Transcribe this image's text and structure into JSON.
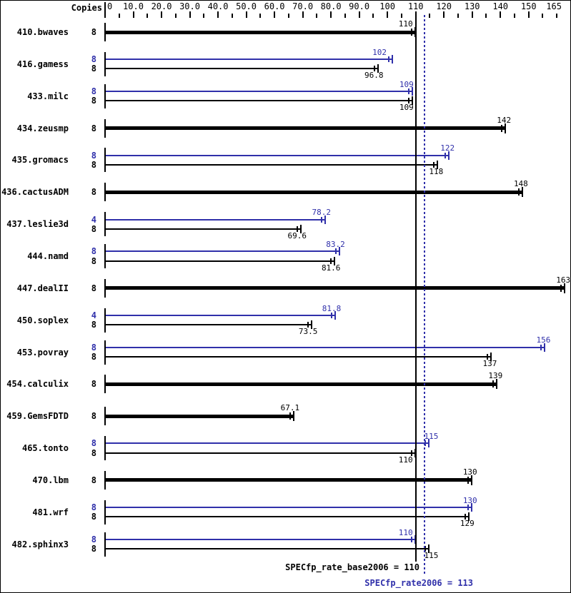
{
  "colors": {
    "base": "#000000",
    "peak": "#3030aa",
    "background": "#ffffff"
  },
  "chart_data": {
    "type": "bar",
    "orientation": "horizontal",
    "title": "",
    "copies_column_header": "Copies",
    "value_axis": {
      "position": "top",
      "min": 0,
      "max": 165,
      "tick_labels": [
        "0",
        "10.0",
        "20.0",
        "30.0",
        "40.0",
        "50.0",
        "60.0",
        "70.0",
        "80.0",
        "90.0",
        "100",
        "110",
        "120",
        "130",
        "140",
        "150",
        "165"
      ],
      "tick_values": [
        0,
        10,
        20,
        30,
        40,
        50,
        60,
        70,
        80,
        90,
        100,
        110,
        120,
        130,
        140,
        150,
        165
      ],
      "minor_tick_values": [
        5,
        15,
        25,
        35,
        45,
        55,
        65,
        75,
        85,
        95,
        105,
        115,
        125,
        135,
        145,
        155,
        160
      ]
    },
    "series_colors": {
      "base": "#000000",
      "peak": "#3030aa"
    },
    "benchmarks": [
      {
        "name": "410.bwaves",
        "bars": [
          {
            "series": "single",
            "copies": "8",
            "value": 110,
            "label": "110",
            "label_dx": -4
          }
        ]
      },
      {
        "name": "416.gamess",
        "bars": [
          {
            "series": "peak",
            "copies": "8",
            "value": 102,
            "label": "102",
            "label_dx": -9
          },
          {
            "series": "base",
            "copies": "8",
            "value": 96.8,
            "label": "96.8"
          }
        ]
      },
      {
        "name": "433.milc",
        "bars": [
          {
            "series": "peak",
            "copies": "8",
            "value": 109,
            "label": "109",
            "label_dx": 1
          },
          {
            "series": "base",
            "copies": "8",
            "value": 109,
            "label": "109",
            "label_dx": 1
          }
        ]
      },
      {
        "name": "434.zeusmp",
        "bars": [
          {
            "series": "single",
            "copies": "8",
            "value": 142,
            "label": "142"
          }
        ]
      },
      {
        "name": "435.gromacs",
        "bars": [
          {
            "series": "peak",
            "copies": "8",
            "value": 122,
            "label": "122"
          },
          {
            "series": "base",
            "copies": "8",
            "value": 118,
            "label": "118"
          }
        ]
      },
      {
        "name": "436.cactusADM",
        "bars": [
          {
            "series": "single",
            "copies": "8",
            "value": 148,
            "label": "148"
          }
        ]
      },
      {
        "name": "437.leslie3d",
        "bars": [
          {
            "series": "peak",
            "copies": "4",
            "value": 78.2,
            "label": "78.2"
          },
          {
            "series": "base",
            "copies": "8",
            "value": 69.6,
            "label": "69.6"
          }
        ]
      },
      {
        "name": "444.namd",
        "bars": [
          {
            "series": "peak",
            "copies": "8",
            "value": 83.2,
            "label": "83.2"
          },
          {
            "series": "base",
            "copies": "8",
            "value": 81.6,
            "label": "81.6"
          }
        ]
      },
      {
        "name": "447.dealII",
        "bars": [
          {
            "series": "single",
            "copies": "8",
            "value": 163,
            "label": "163"
          }
        ]
      },
      {
        "name": "450.soplex",
        "bars": [
          {
            "series": "peak",
            "copies": "4",
            "value": 81.8,
            "label": "81.8"
          },
          {
            "series": "base",
            "copies": "8",
            "value": 73.5,
            "label": "73.5"
          }
        ]
      },
      {
        "name": "453.povray",
        "bars": [
          {
            "series": "peak",
            "copies": "8",
            "value": 156,
            "label": "156"
          },
          {
            "series": "base",
            "copies": "8",
            "value": 137,
            "label": "137"
          }
        ]
      },
      {
        "name": "454.calculix",
        "bars": [
          {
            "series": "single",
            "copies": "8",
            "value": 139,
            "label": "139"
          }
        ]
      },
      {
        "name": "459.GemsFDTD",
        "bars": [
          {
            "series": "single",
            "copies": "8",
            "value": 67.1,
            "label": "67.1"
          }
        ]
      },
      {
        "name": "465.tonto",
        "bars": [
          {
            "series": "peak",
            "copies": "8",
            "value": 115,
            "label": "115",
            "label_dx": 12
          },
          {
            "series": "base",
            "copies": "8",
            "value": 110,
            "label": "110",
            "label_dx": -4
          }
        ]
      },
      {
        "name": "470.lbm",
        "bars": [
          {
            "series": "single",
            "copies": "8",
            "value": 130,
            "label": "130"
          }
        ]
      },
      {
        "name": "481.wrf",
        "bars": [
          {
            "series": "peak",
            "copies": "8",
            "value": 130,
            "label": "130"
          },
          {
            "series": "base",
            "copies": "8",
            "value": 129,
            "label": "129"
          }
        ]
      },
      {
        "name": "482.sphinx3",
        "bars": [
          {
            "series": "peak",
            "copies": "8",
            "value": 110,
            "label": "110",
            "label_dx": -4
          },
          {
            "series": "base",
            "copies": "8",
            "value": 115,
            "label": "115",
            "label_dx": 12
          }
        ]
      }
    ],
    "reference_lines": [
      {
        "name": "base",
        "label": "SPECfp_rate_base2006 = 110",
        "value": 110,
        "style": "solid",
        "color": "#000000"
      },
      {
        "name": "peak",
        "label": "SPECfp_rate2006 = 113",
        "value": 113,
        "style": "dotted",
        "color": "#3030aa"
      }
    ]
  }
}
